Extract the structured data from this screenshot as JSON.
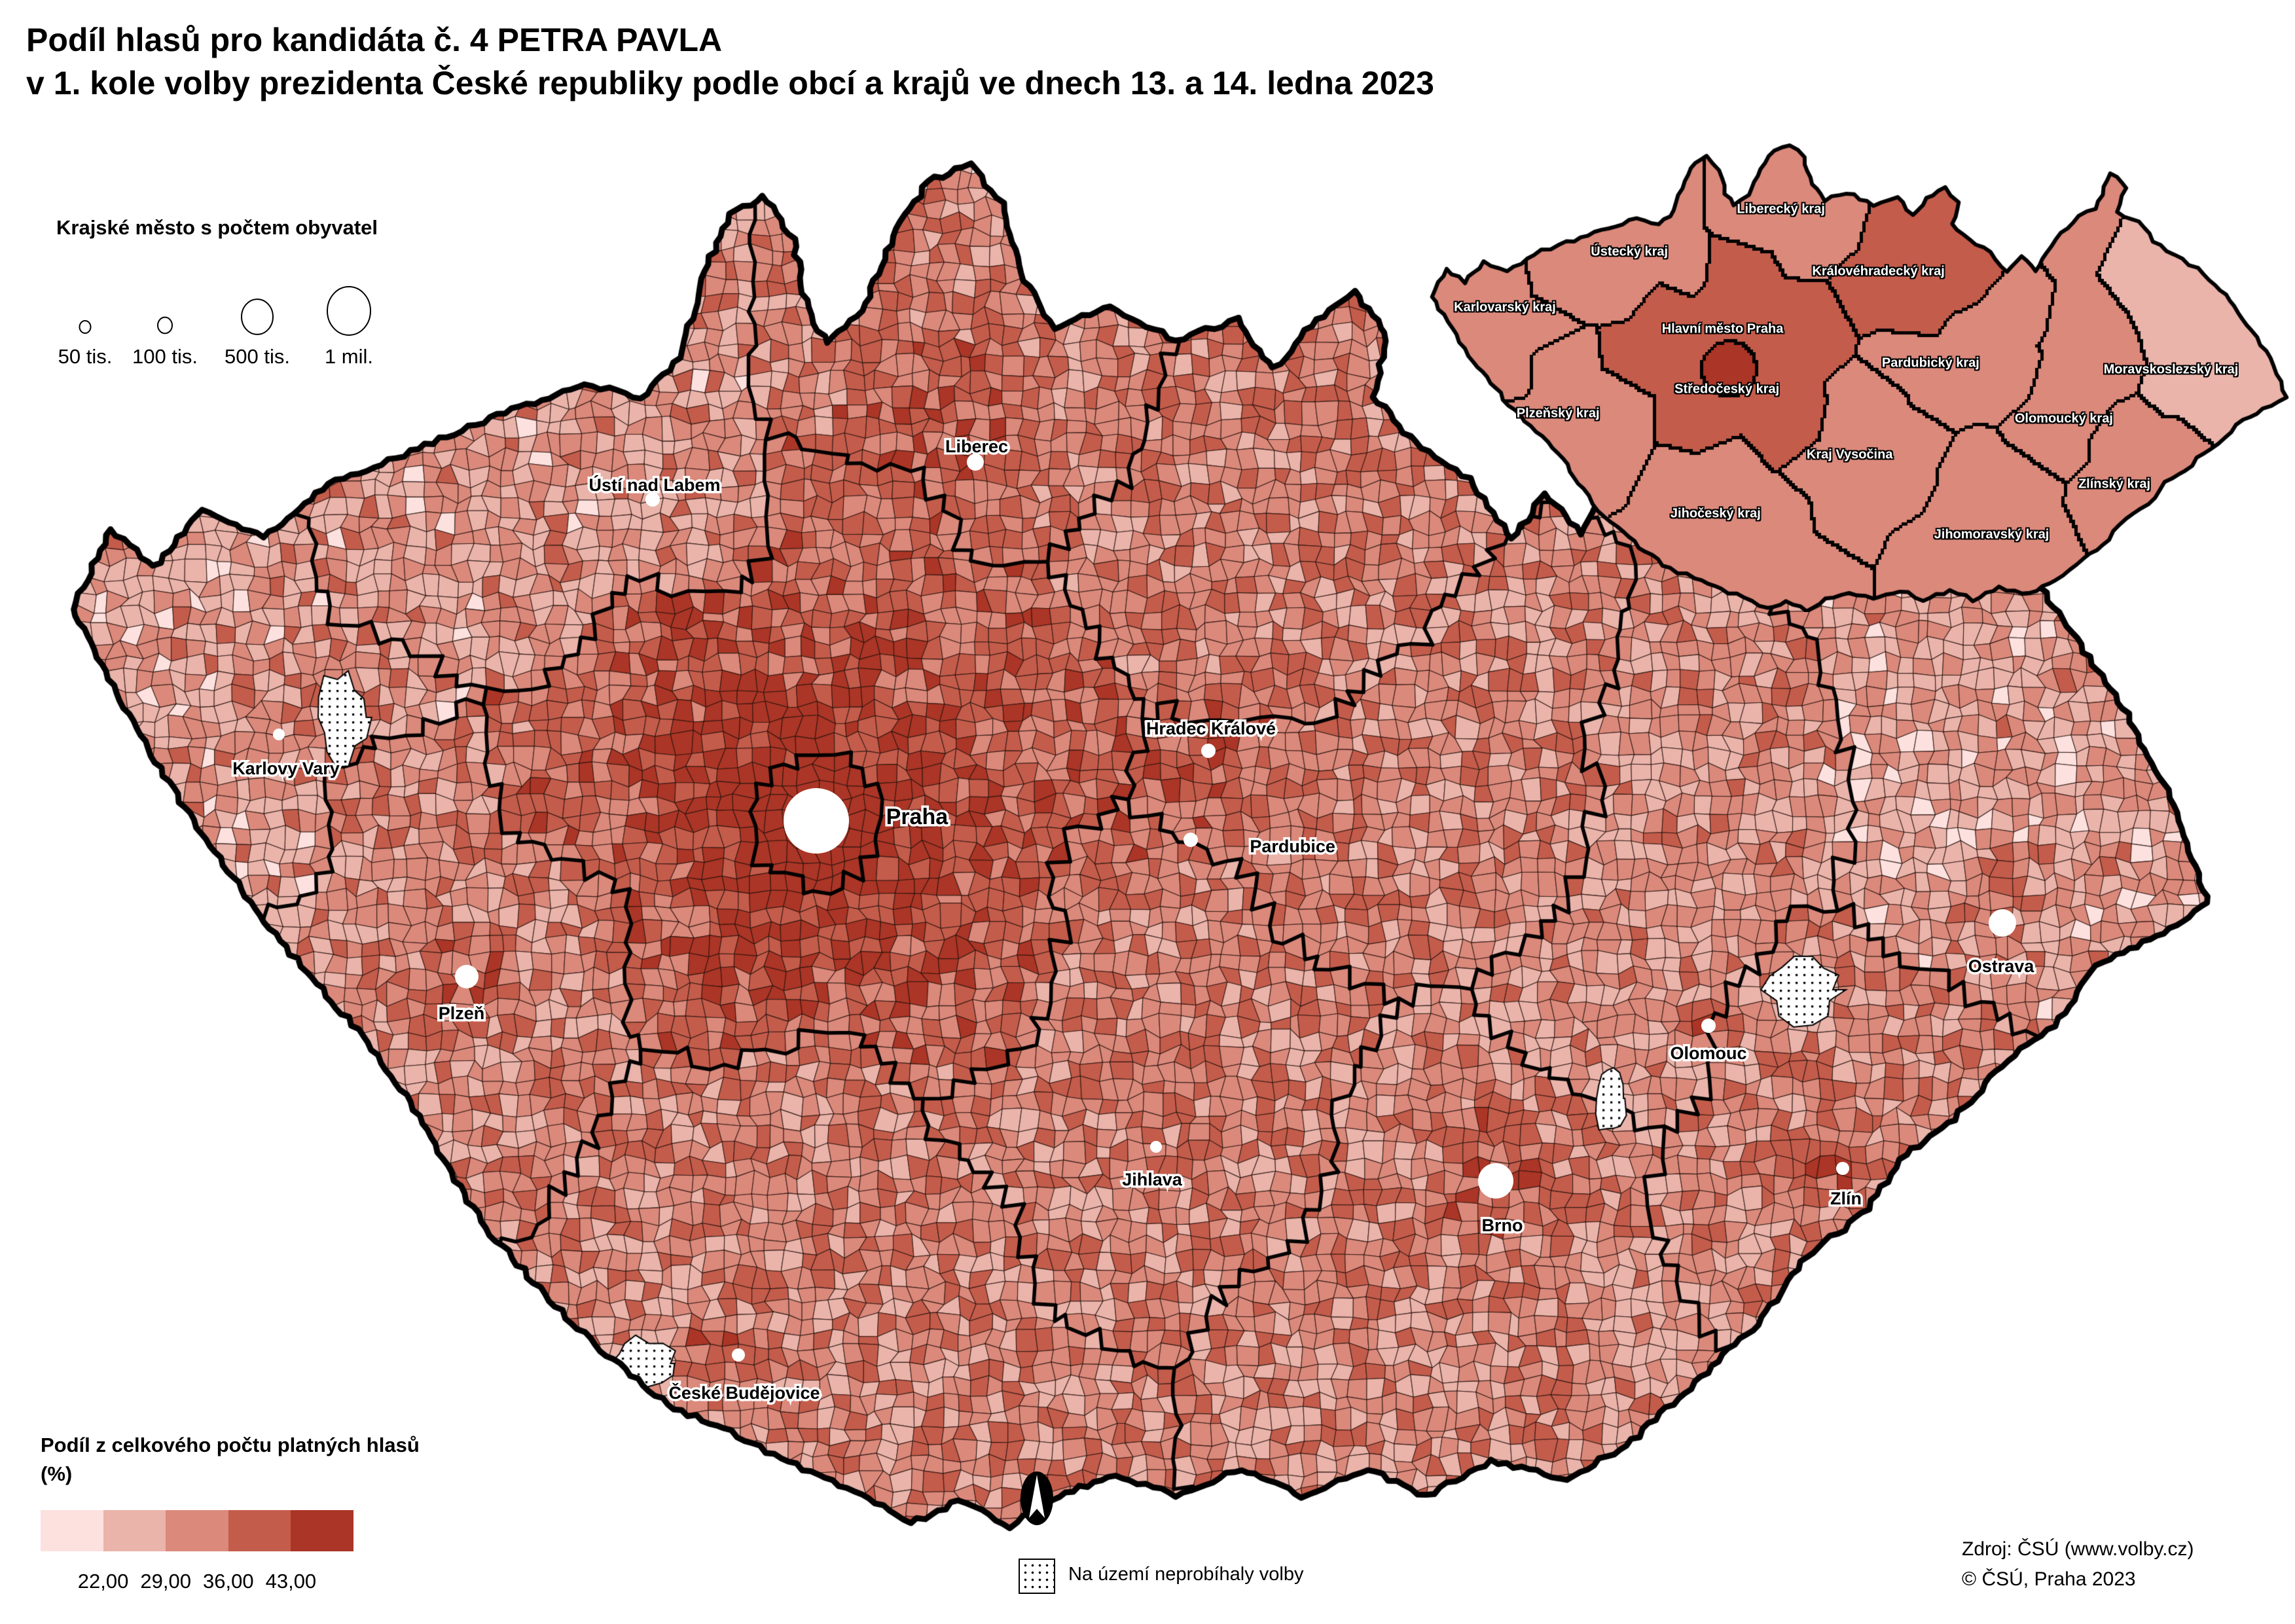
{
  "title": {
    "line1": "Podíl hlasů pro kandidáta č. 4 PETRA PAVLA",
    "line2": "v 1. kole volby prezidenta České republiky podle obcí a krajů ve dnech 13. a 14. ledna 2023"
  },
  "city_size_legend": {
    "title": "Krajské město s počtem obyvatel",
    "items": [
      {
        "label": "50 tis."
      },
      {
        "label": "100 tis."
      },
      {
        "label": "500 tis."
      },
      {
        "label": "1 mil."
      }
    ]
  },
  "color_legend": {
    "title": "Podíl z celkového počtu platných hlasů",
    "unit": "(%)",
    "breaks": [
      "22,00",
      "29,00",
      "36,00",
      "43,00"
    ],
    "colors": [
      "#fce1df",
      "#eab4ab",
      "#db897b",
      "#c45c4b",
      "#ab3526"
    ]
  },
  "no_vote_legend": {
    "label": "Na území neprobíhaly volby"
  },
  "source": {
    "line1": "Zdroj: ČSÚ (www.volby.cz)",
    "line2": "© ČSÚ, Praha 2023"
  },
  "cities": [
    {
      "label": "Praha"
    },
    {
      "label": "Brno"
    },
    {
      "label": "Ostrava"
    },
    {
      "label": "Plzeň"
    },
    {
      "label": "Liberec"
    },
    {
      "label": "Olomouc"
    },
    {
      "label": "Ústí nad Labem"
    },
    {
      "label": "Hradec Králové"
    },
    {
      "label": "Pardubice"
    },
    {
      "label": "České Budějovice"
    },
    {
      "label": "Zlín"
    },
    {
      "label": "Jihlava"
    },
    {
      "label": "Karlovy Vary"
    }
  ],
  "inset": {
    "regions": [
      {
        "label": "Hlavní město Praha",
        "class": 5
      },
      {
        "label": "Středočeský kraj",
        "class": 4
      },
      {
        "label": "Královéhradecký kraj",
        "class": 4
      },
      {
        "label": "Liberecký kraj",
        "class": 3
      },
      {
        "label": "Ústecký kraj",
        "class": 3
      },
      {
        "label": "Karlovarský kraj",
        "class": 3
      },
      {
        "label": "Plzeňský kraj",
        "class": 3
      },
      {
        "label": "Jihočeský kraj",
        "class": 3
      },
      {
        "label": "Kraj Vysočina",
        "class": 3
      },
      {
        "label": "Pardubický kraj",
        "class": 3
      },
      {
        "label": "Jihomoravský kraj",
        "class": 3
      },
      {
        "label": "Olomoucký kraj",
        "class": 3
      },
      {
        "label": "Zlínský kraj",
        "class": 3
      },
      {
        "label": "Moravskoslezský kraj",
        "class": 2
      }
    ]
  }
}
